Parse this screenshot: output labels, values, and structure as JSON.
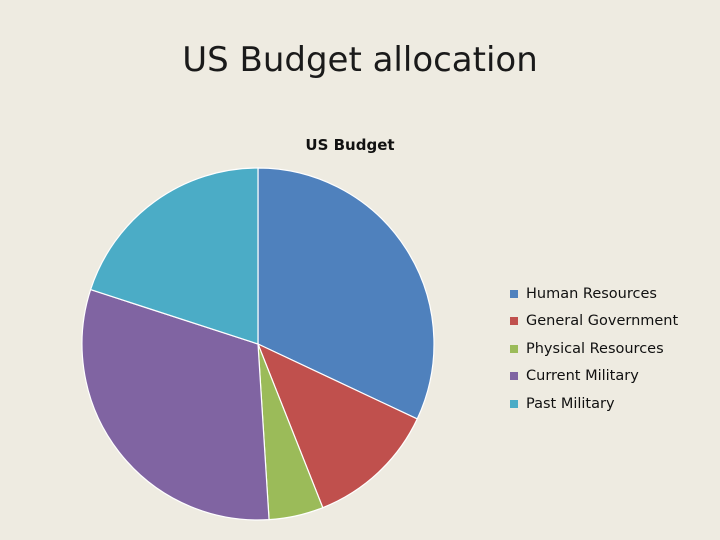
{
  "slide": {
    "title": "US Budget allocation"
  },
  "chart_data": {
    "type": "pie",
    "title": "US Budget",
    "categories": [
      "Human Resources",
      "General Government",
      "Physical Resources",
      "Current Military",
      "Past Military"
    ],
    "values": [
      32,
      12,
      5,
      31,
      20
    ],
    "colors": [
      "#4f81bd",
      "#c0504d",
      "#9bbb59",
      "#8064a2",
      "#4bacc6"
    ],
    "legend": "right"
  }
}
